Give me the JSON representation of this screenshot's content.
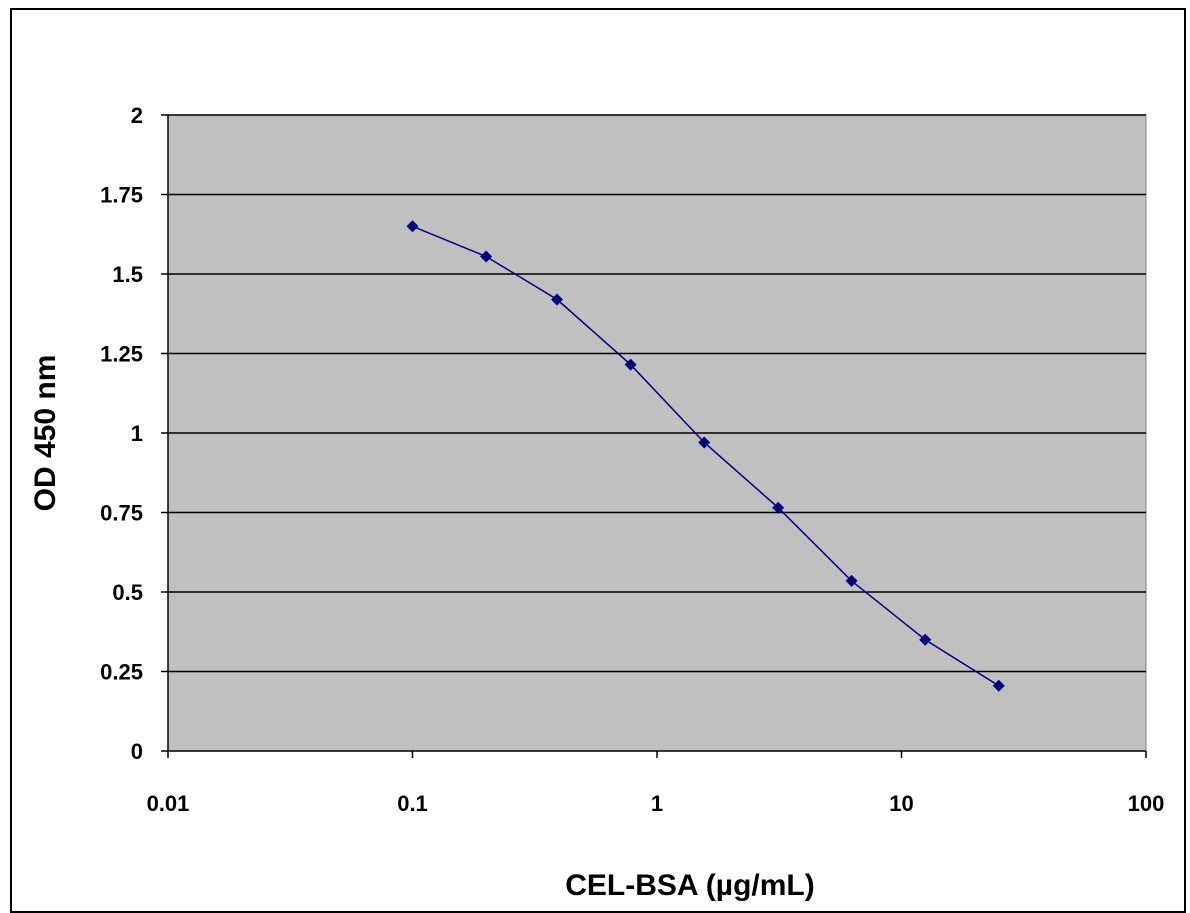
{
  "chart_data": {
    "type": "line",
    "title": "",
    "xlabel": "CEL-BSA (µg/mL)",
    "ylabel": "OD 450 nm",
    "x_scale": "log",
    "xlim": [
      0.01,
      100
    ],
    "ylim": [
      0,
      2
    ],
    "x_ticks": [
      0.01,
      0.1,
      1,
      10,
      100
    ],
    "x_tick_labels": [
      "0.01",
      "0.1",
      "1",
      "10",
      "100"
    ],
    "y_ticks": [
      0,
      0.25,
      0.5,
      0.75,
      1,
      1.25,
      1.5,
      1.75,
      2
    ],
    "y_tick_labels": [
      "0",
      "0.25",
      "0.5",
      "0.75",
      "1",
      "1.25",
      "1.5",
      "1.75",
      "2"
    ],
    "grid": "horizontal major gridlines",
    "legend": "none",
    "series": [
      {
        "x": [
          0.1,
          0.2,
          0.39,
          0.78,
          1.56,
          3.13,
          6.25,
          12.5,
          25
        ],
        "y": [
          1.65,
          1.555,
          1.42,
          1.215,
          0.97,
          0.765,
          0.535,
          0.35,
          0.205
        ],
        "marker": "diamond"
      }
    ],
    "colors": {
      "plot_background": "#c0c0c0",
      "series_line": "#000080",
      "gridline": "#000000"
    }
  }
}
